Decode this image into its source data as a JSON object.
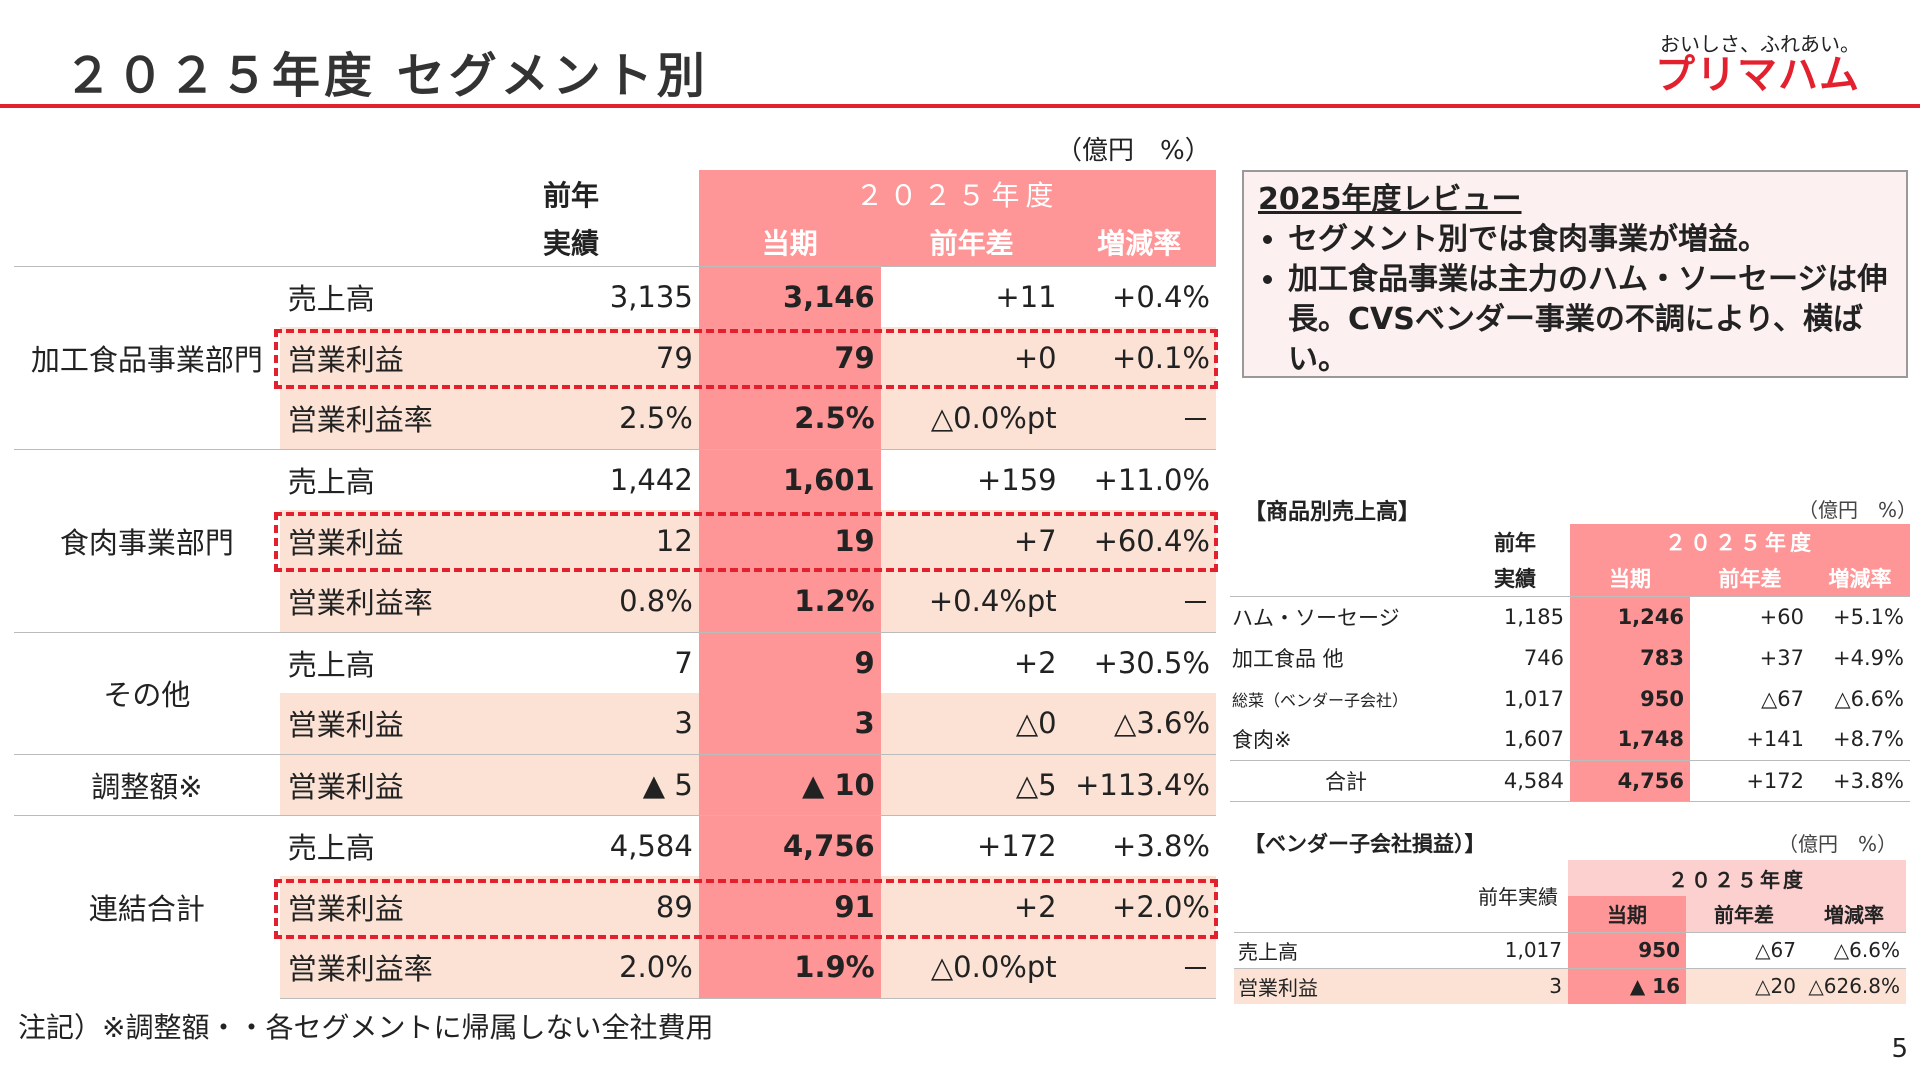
{
  "title": "２０２５年度 セグメント別",
  "logo": {
    "tagline": "おいしさ、ふれあい。",
    "brand": "プリマハム"
  },
  "main": {
    "unit": "（億円　%）",
    "header": {
      "prev_line1": "前年",
      "prev_line2": "実績",
      "year": "２０２５年度",
      "cur": "当期",
      "diff": "前年差",
      "rate": "増減率"
    },
    "segments": [
      {
        "name": "加工食品事業部門",
        "rows": [
          {
            "item": "売上高",
            "prev": "3,135",
            "cur": "3,146",
            "diff": "+11",
            "rate": "+0.4%"
          },
          {
            "item": "営業利益",
            "prev": "79",
            "cur": "79",
            "diff": "+0",
            "rate": "+0.1%"
          },
          {
            "item": "営業利益率",
            "prev": "2.5%",
            "cur": "2.5%",
            "diff": "△0.0%pt",
            "rate": "－"
          }
        ]
      },
      {
        "name": "食肉事業部門",
        "rows": [
          {
            "item": "売上高",
            "prev": "1,442",
            "cur": "1,601",
            "diff": "+159",
            "rate": "+11.0%"
          },
          {
            "item": "営業利益",
            "prev": "12",
            "cur": "19",
            "diff": "+7",
            "rate": "+60.4%"
          },
          {
            "item": "営業利益率",
            "prev": "0.8%",
            "cur": "1.2%",
            "diff": "+0.4%pt",
            "rate": "－"
          }
        ]
      },
      {
        "name": "その他",
        "rows": [
          {
            "item": "売上高",
            "prev": "7",
            "cur": "9",
            "diff": "+2",
            "rate": "+30.5%"
          },
          {
            "item": "営業利益",
            "prev": "3",
            "cur": "3",
            "diff": "△0",
            "rate": "△3.6%"
          }
        ]
      },
      {
        "name": "調整額※",
        "rows": [
          {
            "item": "営業利益",
            "prev": "▲ 5",
            "cur": "▲ 10",
            "diff": "△5",
            "rate": "+113.4%"
          }
        ]
      },
      {
        "name": "連結合計",
        "rows": [
          {
            "item": "売上高",
            "prev": "4,584",
            "cur": "4,756",
            "diff": "+172",
            "rate": "+3.8%"
          },
          {
            "item": "営業利益",
            "prev": "89",
            "cur": "91",
            "diff": "+2",
            "rate": "+2.0%"
          },
          {
            "item": "営業利益率",
            "prev": "2.0%",
            "cur": "1.9%",
            "diff": "△0.0%pt",
            "rate": "－"
          }
        ]
      }
    ]
  },
  "review": {
    "title": "2025年度レビュー",
    "bullets": [
      "セグメント別では食肉事業が増益。",
      "加工食品事業は主力のハム・ソーセージは伸長。CVSベンダー事業の不調により、横ばい。"
    ]
  },
  "products": {
    "title": "【商品別売上高】",
    "unit": "（億円　%）",
    "header": {
      "prev_line1": "前年",
      "prev_line2": "実績",
      "year": "２０２５年度",
      "cur": "当期",
      "diff": "前年差",
      "rate": "増減率"
    },
    "rows": [
      {
        "name": "ハム・ソーセージ",
        "prev": "1,185",
        "cur": "1,246",
        "diff": "+60",
        "rate": "+5.1%"
      },
      {
        "name": "加工食品 他",
        "prev": "746",
        "cur": "783",
        "diff": "+37",
        "rate": "+4.9%"
      },
      {
        "name": "総菜（ベンダー子会社）",
        "prev": "1,017",
        "cur": "950",
        "diff": "△67",
        "rate": "△6.6%"
      },
      {
        "name": "食肉※",
        "prev": "1,607",
        "cur": "1,748",
        "diff": "+141",
        "rate": "+8.7%"
      }
    ],
    "total": {
      "name": "合計",
      "prev": "4,584",
      "cur": "4,756",
      "diff": "+172",
      "rate": "+3.8%"
    }
  },
  "vendor": {
    "title": "【ベンダー子会社損益）】",
    "unit": "（億円　%）",
    "header": {
      "prev": "前年実績",
      "year": "２０２５年度",
      "cur": "当期",
      "diff": "前年差",
      "rate": "増減率"
    },
    "rows": [
      {
        "name": "売上高",
        "prev": "1,017",
        "cur": "950",
        "diff": "△67",
        "rate": "△6.6%"
      },
      {
        "name": "営業利益",
        "prev": "3",
        "cur": "▲ 16",
        "diff": "△20",
        "rate": "△626.8%"
      }
    ]
  },
  "note": "注記）※調整額・・各セグメントに帰属しない全社費用",
  "page_number": "5"
}
